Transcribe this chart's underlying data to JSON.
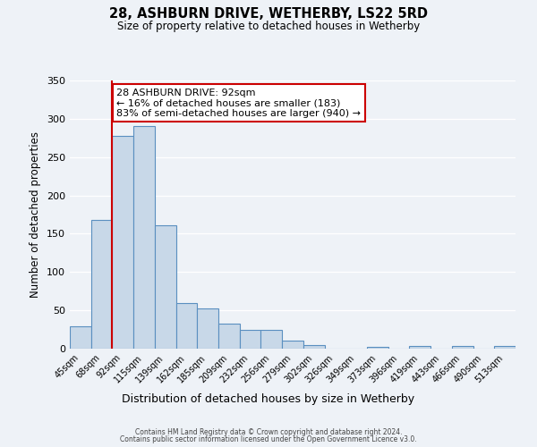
{
  "title": "28, ASHBURN DRIVE, WETHERBY, LS22 5RD",
  "subtitle": "Size of property relative to detached houses in Wetherby",
  "xlabel": "Distribution of detached houses by size in Wetherby",
  "ylabel": "Number of detached properties",
  "categories": [
    "45sqm",
    "68sqm",
    "92sqm",
    "115sqm",
    "139sqm",
    "162sqm",
    "185sqm",
    "209sqm",
    "232sqm",
    "256sqm",
    "279sqm",
    "302sqm",
    "326sqm",
    "349sqm",
    "373sqm",
    "396sqm",
    "419sqm",
    "443sqm",
    "466sqm",
    "490sqm",
    "513sqm"
  ],
  "values": [
    29,
    168,
    278,
    291,
    161,
    59,
    53,
    33,
    25,
    25,
    10,
    5,
    0,
    0,
    2,
    0,
    3,
    0,
    4,
    0,
    4
  ],
  "bar_color": "#c8d8e8",
  "bar_edge_color": "#5a8fc0",
  "highlight_line_color": "#cc0000",
  "annotation_text": "28 ASHBURN DRIVE: 92sqm\n← 16% of detached houses are smaller (183)\n83% of semi-detached houses are larger (940) →",
  "annotation_box_edge_color": "#cc0000",
  "ylim": [
    0,
    350
  ],
  "yticks": [
    0,
    50,
    100,
    150,
    200,
    250,
    300,
    350
  ],
  "background_color": "#eef2f7",
  "footer_line1": "Contains HM Land Registry data © Crown copyright and database right 2024.",
  "footer_line2": "Contains public sector information licensed under the Open Government Licence v3.0."
}
